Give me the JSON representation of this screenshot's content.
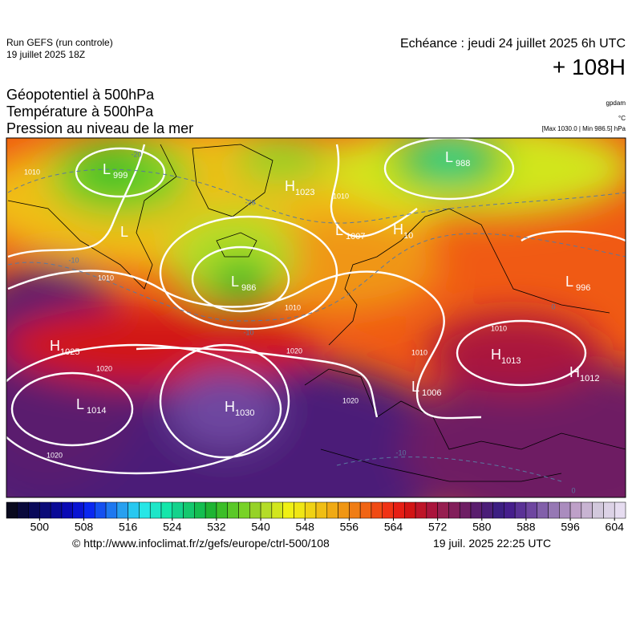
{
  "header": {
    "run": "Run GEFS (run controle)",
    "run_date": "19 juillet 2025 18Z",
    "valid": "Echéance : jeudi 24 juillet 2025 6h UTC",
    "lead": "+ 108H"
  },
  "titles": [
    "Géopotentiel à 500hPa",
    "Température à 500hPa",
    "Pression au niveau de la mer"
  ],
  "units": {
    "geopotential": "gpdam",
    "temperature": "°C",
    "pressure": "[Max 1030.0 | Min 986.5] hPa"
  },
  "pressure_centers": [
    {
      "type": "L",
      "value": 999
    },
    {
      "type": "L",
      "value": 986
    },
    {
      "type": "H",
      "value": 1023
    },
    {
      "type": "L",
      "value": 1007
    },
    {
      "type": "H",
      "value": 10
    },
    {
      "type": "L",
      "value": 988
    },
    {
      "type": "L",
      "value": 996
    },
    {
      "type": "H",
      "value": 1025
    },
    {
      "type": "L",
      "value": 1014
    },
    {
      "type": "H",
      "value": 1030
    },
    {
      "type": "H",
      "value": 1013
    },
    {
      "type": "H",
      "value": 1012
    },
    {
      "type": "L",
      "value": 1006
    },
    {
      "type": "L"
    }
  ],
  "isobar_labels": [
    1010,
    1010,
    1010,
    1010,
    1020,
    1020,
    1020,
    1020,
    1010,
    1010
  ],
  "isotherm_labels": [
    -20,
    -20,
    -10,
    -10,
    -10,
    0,
    0
  ],
  "colorbar": {
    "lim": [
      494,
      606
    ],
    "ticks": [
      500,
      508,
      516,
      524,
      532,
      540,
      548,
      556,
      564,
      572,
      580,
      588,
      596,
      604
    ],
    "colors": [
      "#0a0a1e",
      "#0a0a3c",
      "#0a0a5a",
      "#0a0a78",
      "#0a0a96",
      "#0a0ab4",
      "#0a14d2",
      "#0a28f0",
      "#1450f0",
      "#1e78f0",
      "#28a0f0",
      "#28c8f0",
      "#28e6e6",
      "#1ee6c8",
      "#14e6aa",
      "#14d28c",
      "#14c86e",
      "#14be50",
      "#1eb432",
      "#3cbe28",
      "#5ac828",
      "#78d228",
      "#96d228",
      "#b4dc28",
      "#d2e61e",
      "#f0f014",
      "#f0e614",
      "#f0d214",
      "#f0be14",
      "#f0aa14",
      "#f09614",
      "#f07d14",
      "#f06414",
      "#f04b14",
      "#f03214",
      "#e61e14",
      "#d21414",
      "#be1428",
      "#aa143c",
      "#961e50",
      "#821e5a",
      "#6e1e64",
      "#5a1e6e",
      "#4b1e78",
      "#3c1e82",
      "#461e8c",
      "#5a3296",
      "#6e46a0",
      "#8260aa",
      "#9678b4",
      "#aa8cbe",
      "#bea0c8",
      "#c8b4d2",
      "#d2c8dc",
      "#dcd2e6",
      "#e6dcf0"
    ]
  },
  "footer": {
    "url": "© http://www.infoclimat.fr/z/gefs/europe/ctrl-500/108",
    "generated": "19 juil. 2025 22:25 UTC"
  }
}
